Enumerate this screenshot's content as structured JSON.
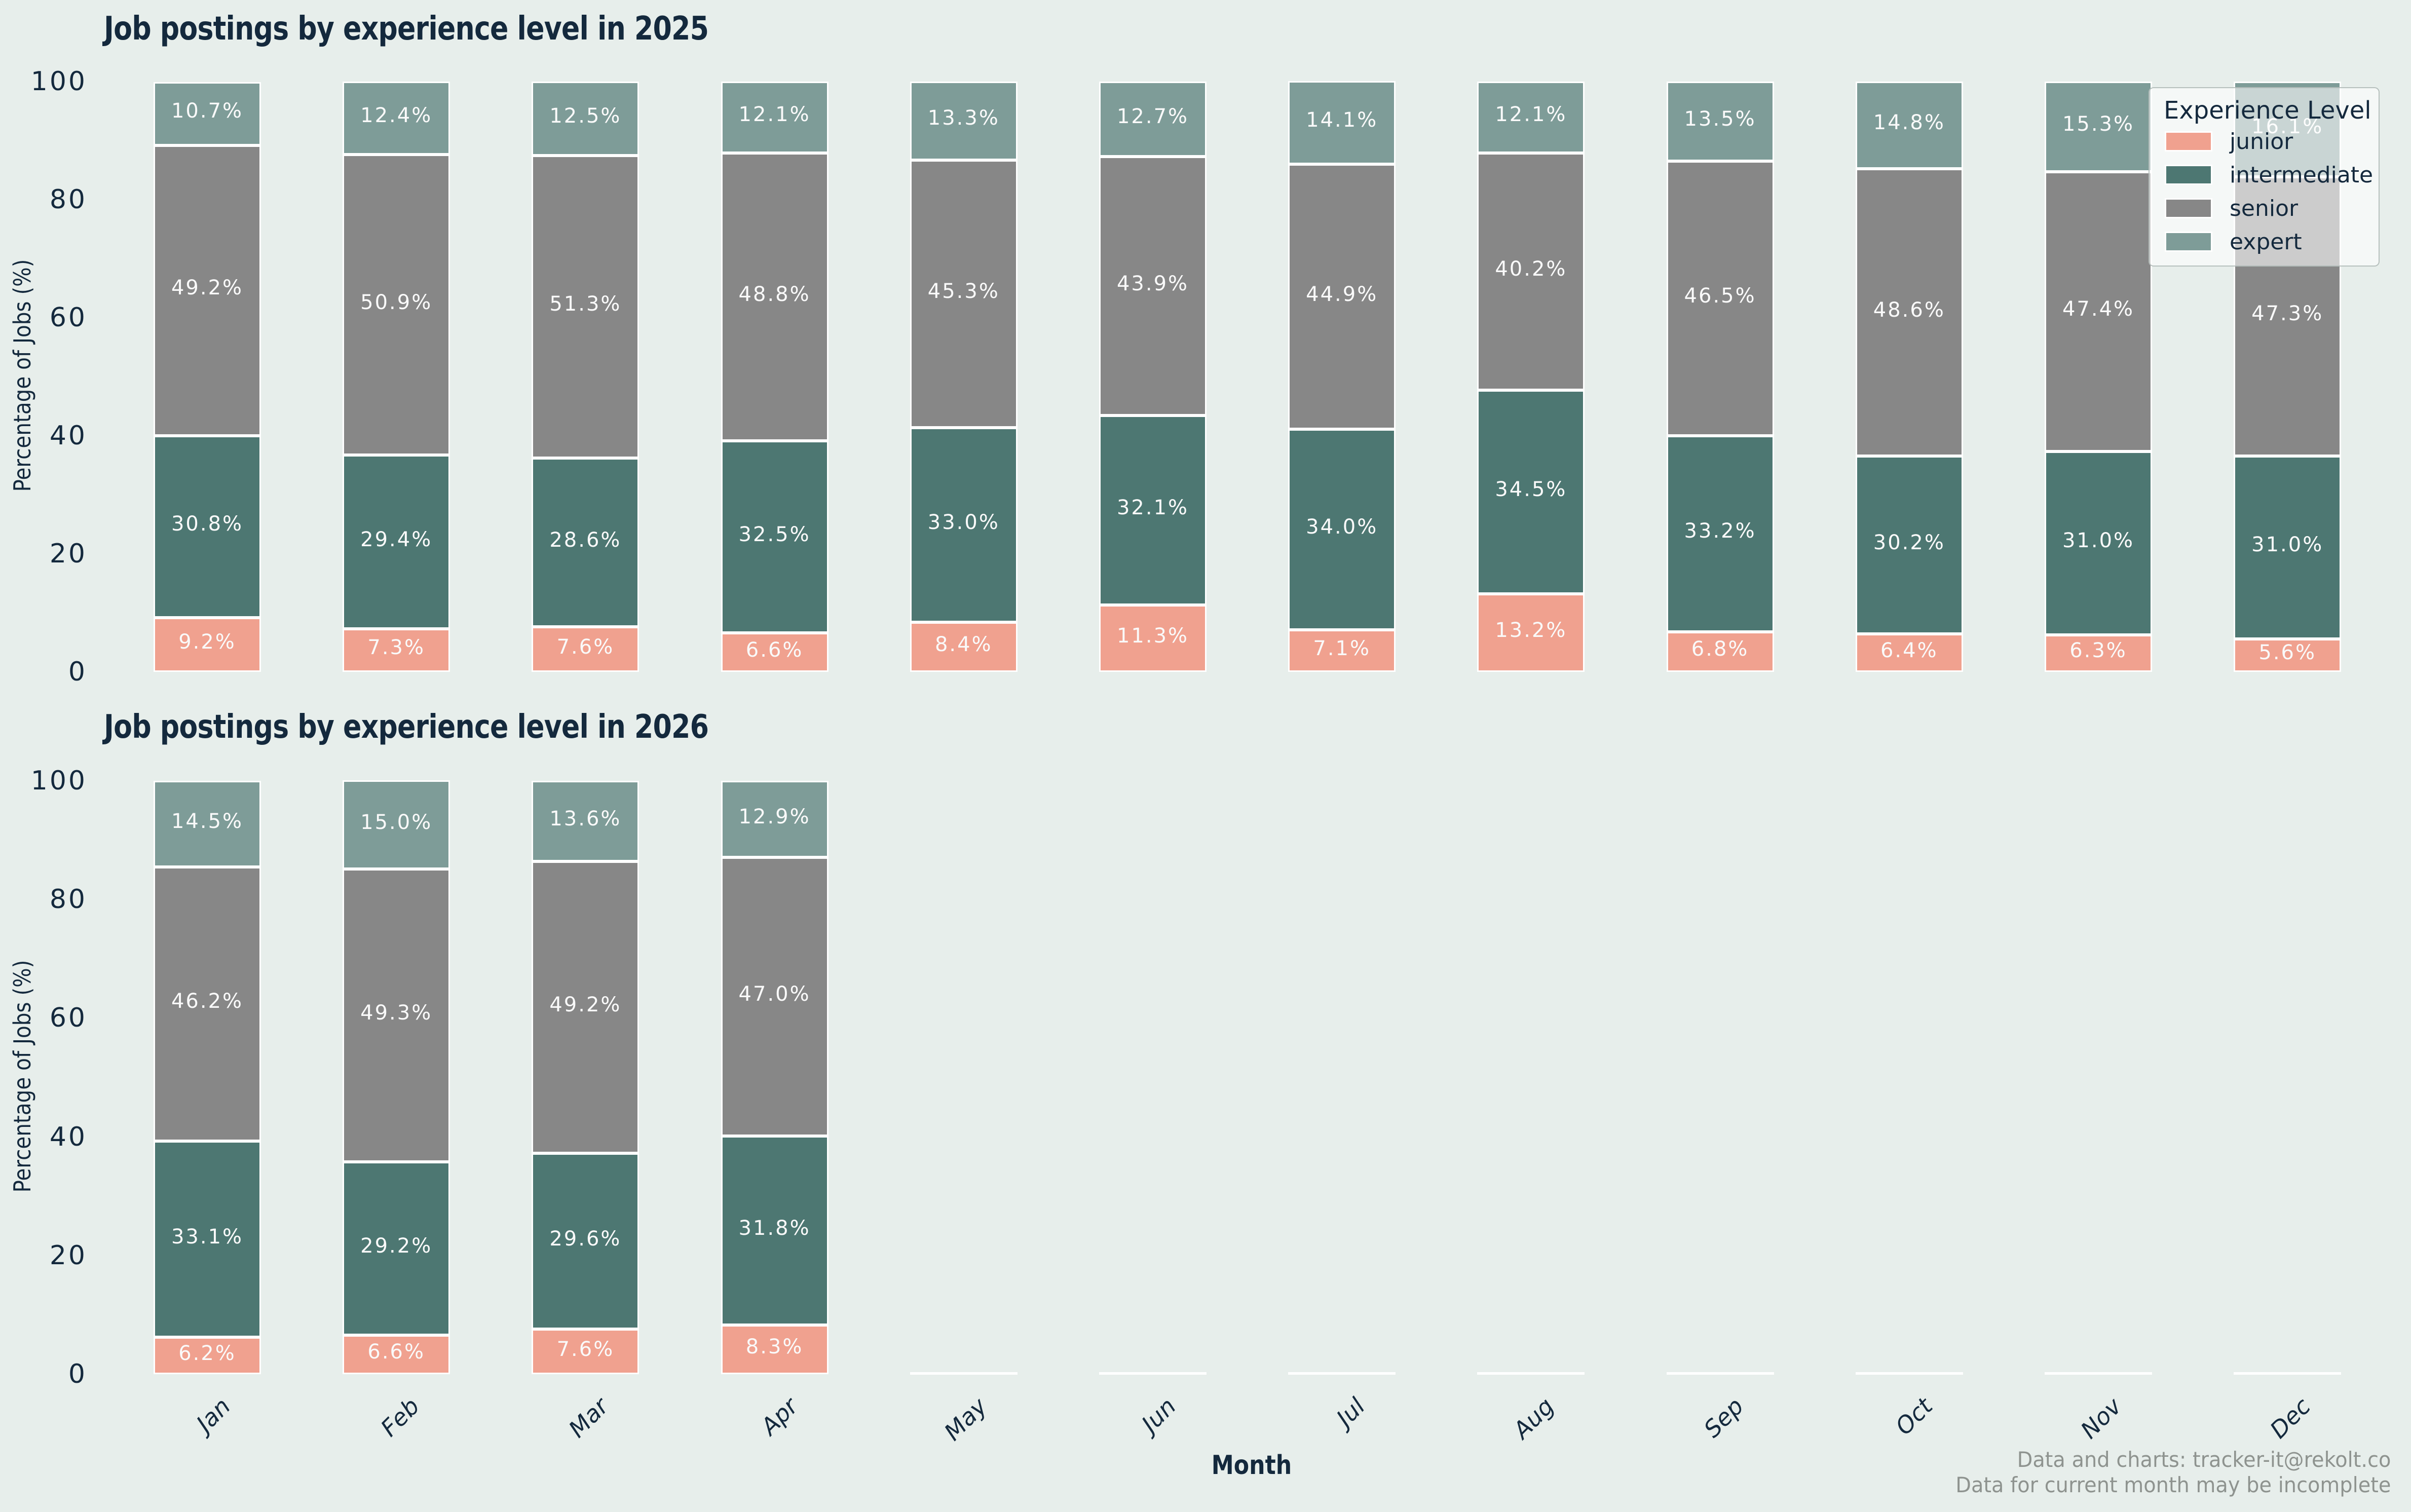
{
  "figure": {
    "background": "#e7eeeb",
    "xlabel": "Month",
    "footer": {
      "line1": "Data and charts: tracker-it@rekolt.co",
      "line2": "Data for current month may be incomplete"
    }
  },
  "colors": {
    "junior": "#f0a18f",
    "intermediate": "#4d7772",
    "senior": "#878787",
    "expert": "#7e9c98",
    "text": "#14293d",
    "footer_text": "#8e938f",
    "background": "#e7eeeb"
  },
  "legend": {
    "title": "Experience Level",
    "entries": [
      {
        "label": "junior",
        "color": "#f0a18f"
      },
      {
        "label": "intermediate",
        "color": "#4d7772"
      },
      {
        "label": "senior",
        "color": "#878787"
      },
      {
        "label": "expert",
        "color": "#7e9c98"
      }
    ]
  },
  "chart_data": [
    {
      "type": "bar",
      "stacked": true,
      "title": "Job postings by experience level in 2025",
      "xlabel": "Month",
      "ylabel": "Percentage of Jobs (%)",
      "ylim": [
        0,
        100
      ],
      "yticks": [
        0,
        20,
        40,
        60,
        80,
        100
      ],
      "grid": false,
      "legend_position": "upper right",
      "categories": [
        "Jan",
        "Feb",
        "Mar",
        "Apr",
        "May",
        "Jun",
        "Jul",
        "Aug",
        "Sep",
        "Oct",
        "Nov",
        "Dec"
      ],
      "series": [
        {
          "name": "junior",
          "color": "#f0a18f",
          "values": [
            9.2,
            7.3,
            7.6,
            6.6,
            8.4,
            11.3,
            7.1,
            13.2,
            6.8,
            6.4,
            6.3,
            5.6
          ]
        },
        {
          "name": "intermediate",
          "color": "#4d7772",
          "values": [
            30.8,
            29.4,
            28.6,
            32.5,
            33.0,
            32.1,
            34.0,
            34.5,
            33.2,
            30.2,
            31.0,
            31.0
          ]
        },
        {
          "name": "senior",
          "color": "#878787",
          "values": [
            49.2,
            50.9,
            51.3,
            48.8,
            45.3,
            43.9,
            44.9,
            40.2,
            46.5,
            48.6,
            47.4,
            47.3
          ]
        },
        {
          "name": "expert",
          "color": "#7e9c98",
          "values": [
            10.7,
            12.4,
            12.5,
            12.1,
            13.3,
            12.7,
            14.1,
            12.1,
            13.5,
            14.8,
            15.3,
            16.1
          ]
        }
      ]
    },
    {
      "type": "bar",
      "stacked": true,
      "title": "Job postings by experience level in 2026",
      "xlabel": "Month",
      "ylabel": "Percentage of Jobs (%)",
      "ylim": [
        0,
        100
      ],
      "yticks": [
        0,
        20,
        40,
        60,
        80,
        100
      ],
      "grid": false,
      "categories": [
        "Jan",
        "Feb",
        "Mar",
        "Apr",
        "May",
        "Jun",
        "Jul",
        "Aug",
        "Sep",
        "Oct",
        "Nov",
        "Dec"
      ],
      "series": [
        {
          "name": "junior",
          "color": "#f0a18f",
          "values": [
            6.2,
            6.6,
            7.6,
            8.3,
            null,
            null,
            null,
            null,
            null,
            null,
            null,
            null
          ]
        },
        {
          "name": "intermediate",
          "color": "#4d7772",
          "values": [
            33.1,
            29.2,
            29.6,
            31.8,
            null,
            null,
            null,
            null,
            null,
            null,
            null,
            null
          ]
        },
        {
          "name": "senior",
          "color": "#878787",
          "values": [
            46.2,
            49.3,
            49.2,
            47.0,
            null,
            null,
            null,
            null,
            null,
            null,
            null,
            null
          ]
        },
        {
          "name": "expert",
          "color": "#7e9c98",
          "values": [
            14.5,
            15.0,
            13.6,
            12.9,
            null,
            null,
            null,
            null,
            null,
            null,
            null,
            null
          ]
        }
      ]
    }
  ]
}
